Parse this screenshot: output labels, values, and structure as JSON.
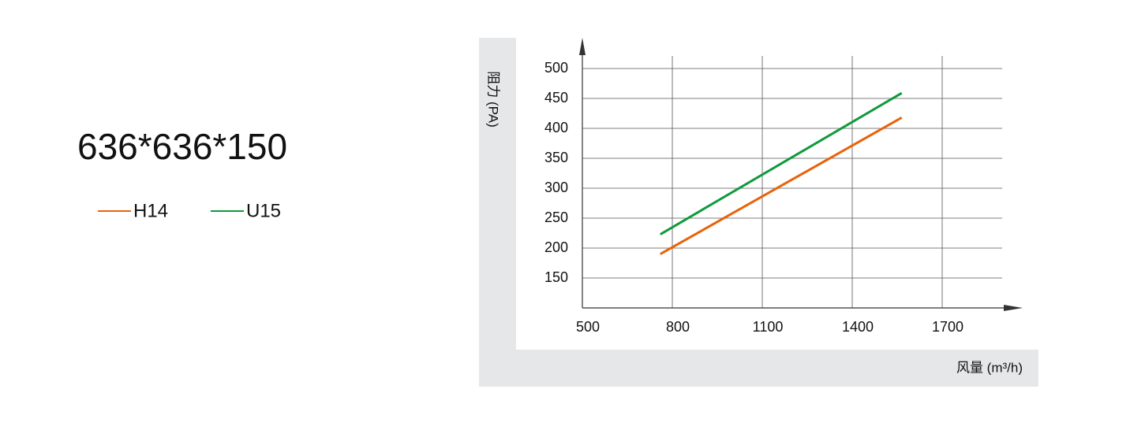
{
  "chart_data": {
    "type": "line",
    "title": "636*636*150",
    "x_label": "风量 (m³/h)",
    "y_label": "阻力 (PA)",
    "xlim": [
      500,
      1900
    ],
    "xticks": [
      500,
      800,
      1100,
      1400,
      1700
    ],
    "ylim": [
      100,
      500
    ],
    "yticks": [
      150,
      200,
      250,
      300,
      350,
      400,
      450,
      500
    ],
    "grid": true,
    "series": [
      {
        "name": "H14",
        "color": "#e8630a",
        "x": [
          760,
          1565
        ],
        "values": [
          190,
          418
        ]
      },
      {
        "name": "U15",
        "color": "#0f9a3c",
        "x": [
          760,
          1565
        ],
        "values": [
          223,
          459
        ]
      }
    ]
  }
}
